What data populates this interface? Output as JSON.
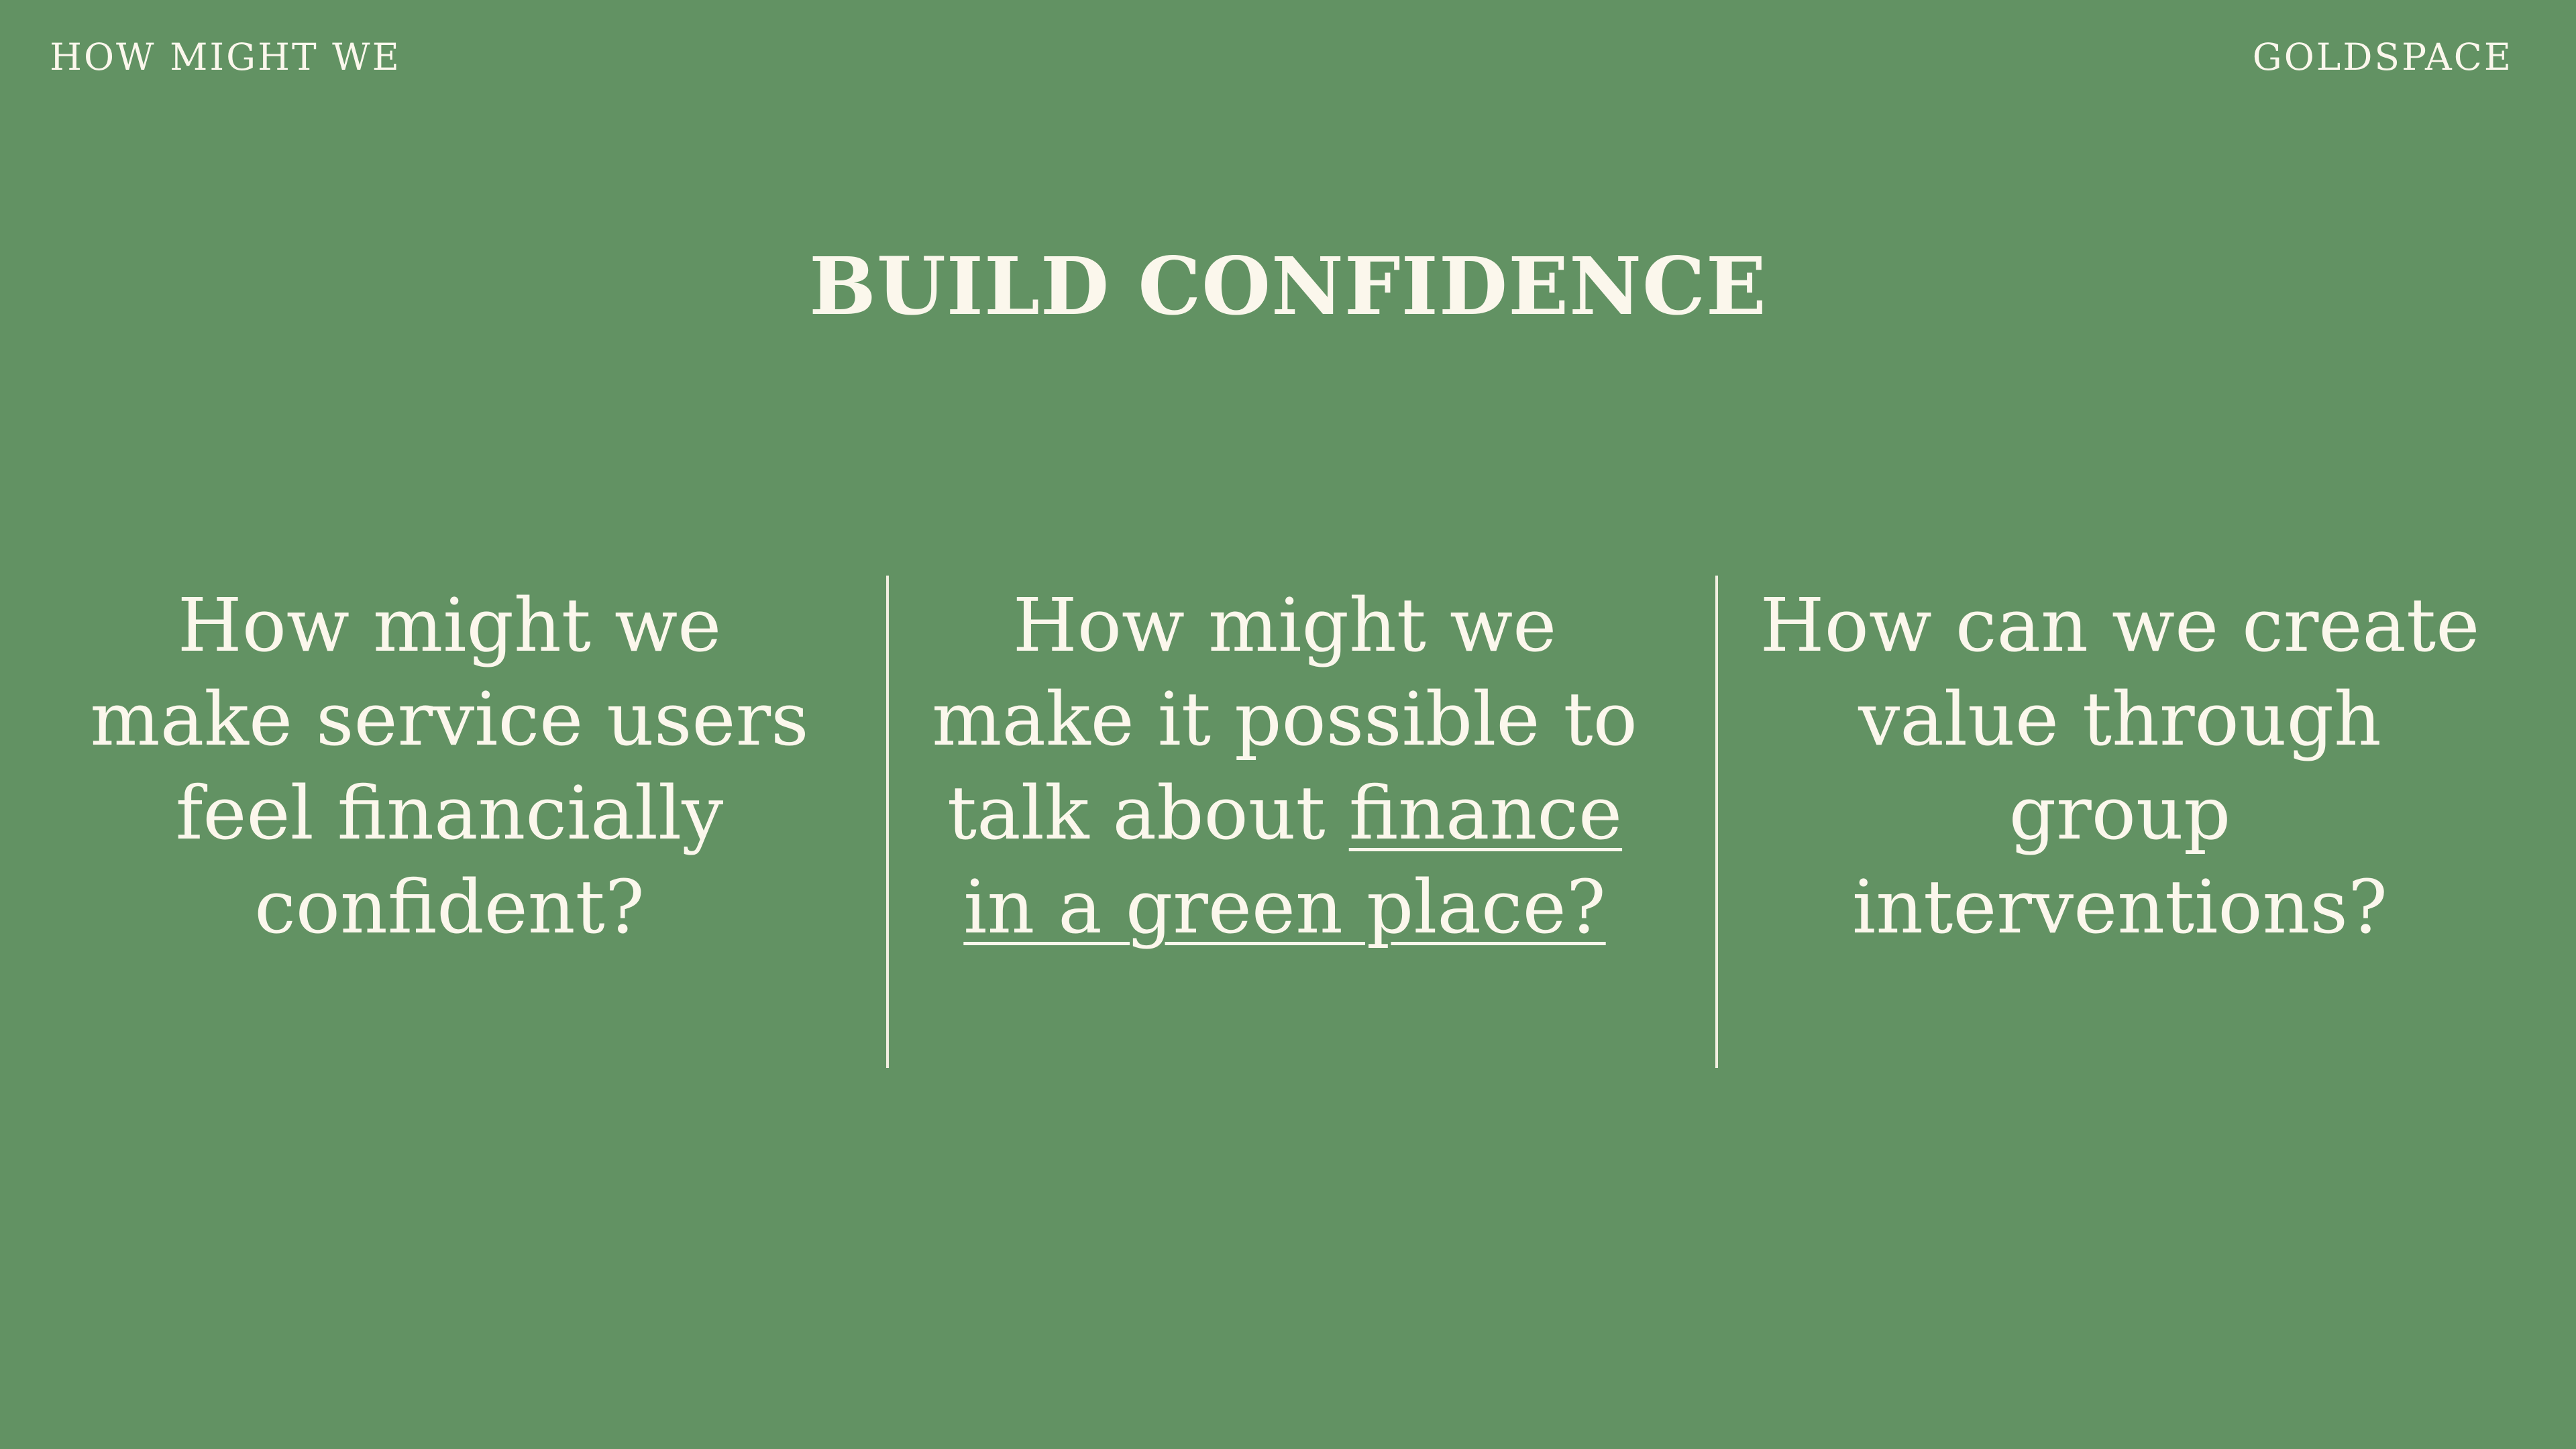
{
  "header": {
    "left_label": "HOW MIGHT WE",
    "right_label": "GOLDSPACE"
  },
  "title": "BUILD CONFIDENCE",
  "columns": [
    {
      "line1": "How might we",
      "line2": "make service users",
      "line3": "feel financially",
      "line4": "confident?"
    },
    {
      "line1": "How might we",
      "line2": "make it possible to",
      "line3_plain": "talk about ",
      "line3_underlined": "finance",
      "line4_underlined": "in a green place?"
    },
    {
      "line1": "How can we create",
      "line2": "value through",
      "line3": "group",
      "line4": "interventions?"
    }
  ],
  "colors": {
    "background": "#629263",
    "text": "#fbf7ec",
    "divider": "#f3efe2"
  }
}
